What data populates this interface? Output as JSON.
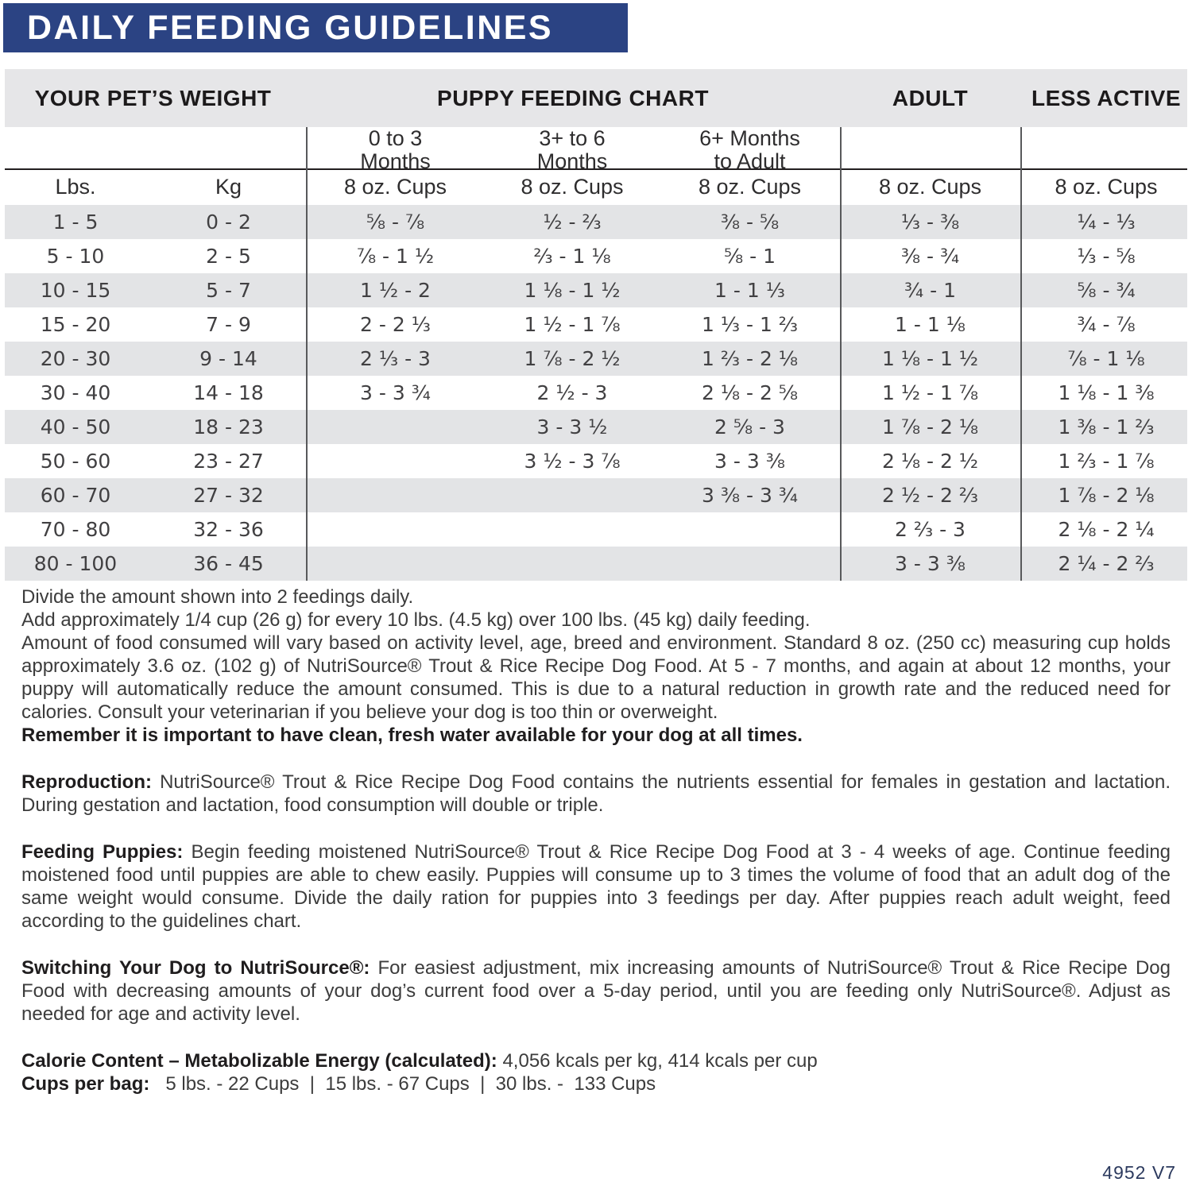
{
  "title": "DAILY FEEDING GUIDELINES",
  "table": {
    "group_headers": {
      "weight": "YOUR PET’S WEIGHT",
      "puppy": "PUPPY FEEDING CHART",
      "adult": "ADULT",
      "less_active": "LESS ACTIVE"
    },
    "age_columns": {
      "p03": "0 to 3\nMonths",
      "p36": "3+ to 6\nMonths",
      "p6a": "6+ Months\nto Adult"
    },
    "units": {
      "lbs": "Lbs.",
      "kg": "Kg",
      "cups": "8 oz. Cups"
    },
    "rows": [
      {
        "lbs": "1 - 5",
        "kg": "0 - 2",
        "p03": "⁵⁄₈ - ⁷⁄₈",
        "p36": "¹⁄₂ - ²⁄₃",
        "p6a": "³⁄₈ - ⁵⁄₈",
        "adult": "¹⁄₃ - ³⁄₈",
        "less": "¹⁄₄ - ¹⁄₃"
      },
      {
        "lbs": "5 - 10",
        "kg": "2 - 5",
        "p03": "⁷⁄₈ - 1 ¹⁄₂",
        "p36": "²⁄₃ - 1 ¹⁄₈",
        "p6a": "⁵⁄₈ - 1",
        "adult": "³⁄₈ - ³⁄₄",
        "less": "¹⁄₃ - ⁵⁄₈"
      },
      {
        "lbs": "10 - 15",
        "kg": "5 - 7",
        "p03": "1 ¹⁄₂ - 2",
        "p36": "1 ¹⁄₈ - 1 ¹⁄₂",
        "p6a": "1 - 1 ¹⁄₃",
        "adult": "³⁄₄ - 1",
        "less": "⁵⁄₈ - ³⁄₄"
      },
      {
        "lbs": "15 - 20",
        "kg": "7 - 9",
        "p03": "2 - 2 ¹⁄₃",
        "p36": "1 ¹⁄₂ - 1 ⁷⁄₈",
        "p6a": "1 ¹⁄₃ - 1 ²⁄₃",
        "adult": "1 - 1 ¹⁄₈",
        "less": "³⁄₄ - ⁷⁄₈"
      },
      {
        "lbs": "20 - 30",
        "kg": "9 - 14",
        "p03": "2 ¹⁄₃ - 3",
        "p36": "1 ⁷⁄₈ - 2 ¹⁄₂",
        "p6a": "1 ²⁄₃ - 2 ¹⁄₈",
        "adult": "1 ¹⁄₈ - 1 ¹⁄₂",
        "less": "⁷⁄₈ - 1 ¹⁄₈"
      },
      {
        "lbs": "30 - 40",
        "kg": "14 - 18",
        "p03": "3 - 3 ³⁄₄",
        "p36": "2 ¹⁄₂ - 3",
        "p6a": "2 ¹⁄₈ - 2 ⁵⁄₈",
        "adult": "1 ¹⁄₂ - 1 ⁷⁄₈",
        "less": "1 ¹⁄₈ - 1 ³⁄₈"
      },
      {
        "lbs": "40 - 50",
        "kg": "18 - 23",
        "p03": "",
        "p36": "3 - 3 ¹⁄₂",
        "p6a": "2 ⁵⁄₈ - 3",
        "adult": "1 ⁷⁄₈ - 2 ¹⁄₈",
        "less": "1 ³⁄₈ - 1 ²⁄₃"
      },
      {
        "lbs": "50 - 60",
        "kg": "23 - 27",
        "p03": "",
        "p36": "3 ¹⁄₂ - 3 ⁷⁄₈",
        "p6a": "3 - 3 ³⁄₈",
        "adult": "2 ¹⁄₈ - 2 ¹⁄₂",
        "less": "1 ²⁄₃ - 1 ⁷⁄₈"
      },
      {
        "lbs": "60 - 70",
        "kg": "27 - 32",
        "p03": "",
        "p36": "",
        "p6a": "3 ³⁄₈ - 3 ³⁄₄",
        "adult": "2 ¹⁄₂ - 2 ²⁄₃",
        "less": "1 ⁷⁄₈ - 2 ¹⁄₈"
      },
      {
        "lbs": "70 - 80",
        "kg": "32 - 36",
        "p03": "",
        "p36": "",
        "p6a": "",
        "adult": "2 ²⁄₃ - 3",
        "less": "2 ¹⁄₈ - 2 ¹⁄₄"
      },
      {
        "lbs": "80 - 100",
        "kg": "36 - 45",
        "p03": "",
        "p36": "",
        "p6a": "",
        "adult": "3 - 3 ³⁄₈",
        "less": "2 ¹⁄₄ - 2 ²⁄₃"
      }
    ]
  },
  "notes": {
    "p1": "Divide the amount shown into 2 feedings daily.",
    "p2": "Add approximately 1/4 cup (26 g) for every 10 lbs. (4.5 kg) over 100 lbs. (45 kg) daily feeding.",
    "p3": "Amount of food consumed will vary based on activity level, age, breed and environment. Standard 8 oz. (250 cc) measuring cup holds approximately 3.6 oz. (102 g)  of NutriSource® Trout & Rice Recipe Dog Food. At 5 - 7 months, and again at about 12 months, your puppy will automatically reduce the amount consumed. This is due to a natural reduction in growth rate and the reduced need for calories. Consult your veterinarian if you believe your dog is too thin or overweight.",
    "p4": "Remember it is important to have clean, fresh water available for your dog at all times.",
    "p5_lead": "Reproduction:",
    "p5_text": "NutriSource® Trout & Rice Recipe Dog Food contains the nutrients essential for females in gestation and lactation. During gestation and lactation, food consumption will double or triple.",
    "p6_lead": "Feeding Puppies:",
    "p6_text": "Begin feeding moistened NutriSource® Trout & Rice Recipe Dog Food at 3 - 4 weeks of age. Continue feeding moistened food until puppies are able to chew easily. Puppies will consume up to 3 times the volume of food that an adult dog of the same weight would consume. Divide the daily ration for puppies into 3 feedings per day. After puppies reach adult weight, feed according to the guidelines chart.",
    "p7_lead": "Switching Your Dog to NutriSource®:",
    "p7_text": "For easiest adjustment, mix increasing amounts of NutriSource® Trout & Rice Recipe Dog Food with decreasing amounts of your dog’s current food over a 5-day period, until you are feeding only NutriSource®. Adjust as needed for age and activity level.",
    "p8_lead": "Calorie Content – Metabolizable Energy (calculated):",
    "p8_text": "4,056 kcals per kg, 414 kcals per cup",
    "p9_lead": "Cups per bag:",
    "p9_text": "  5 lbs. - 22 Cups  |  15 lbs. - 67 Cups  |  30 lbs. -  133 Cups"
  },
  "footer_code": "4952 V7",
  "colors": {
    "header_navy": "#2b4383",
    "band_gray": "#e6e6e8",
    "stripe_gray": "#e3e4e6",
    "footer_navy": "#2c3a5e"
  }
}
